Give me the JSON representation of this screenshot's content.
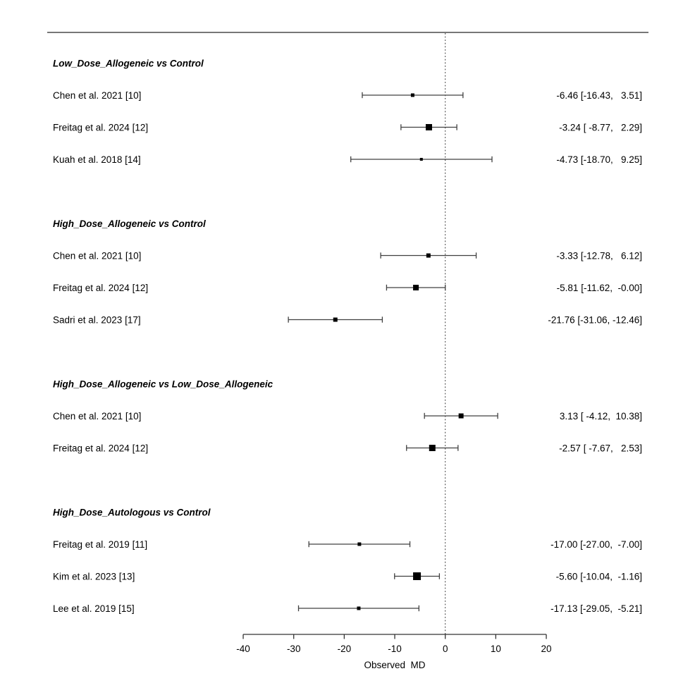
{
  "chart_data": {
    "type": "forest",
    "title": "",
    "xlabel": "Observed  MD",
    "xlim": [
      -40,
      20
    ],
    "x_ticks": [
      -40,
      -30,
      -20,
      -10,
      0,
      10,
      20
    ],
    "reference_line": 0,
    "grid": false,
    "legend": "none",
    "colors": {
      "marker": "#000000",
      "line": "#404040",
      "reference": "#333333",
      "text": "#000000"
    },
    "groups": [
      {
        "label": "Low_Dose_Allogeneic vs Control",
        "studies": [
          {
            "label": "Chen et al. 2021 [10]",
            "estimate": -6.46,
            "ci_lower": -16.43,
            "ci_upper": 3.51,
            "annotation": " -6.46 [-16.43,   3.51]",
            "marker_px": 5
          },
          {
            "label": "Freitag et al. 2024 [12]",
            "estimate": -3.24,
            "ci_lower": -8.77,
            "ci_upper": 2.29,
            "annotation": " -3.24 [ -8.77,   2.29]",
            "marker_px": 9
          },
          {
            "label": "Kuah et al. 2018 [14]",
            "estimate": -4.73,
            "ci_lower": -18.7,
            "ci_upper": 9.25,
            "annotation": " -4.73 [-18.70,   9.25]",
            "marker_px": 4
          }
        ]
      },
      {
        "label": "High_Dose_Allogeneic vs Control",
        "studies": [
          {
            "label": "Chen et al. 2021 [10]",
            "estimate": -3.33,
            "ci_lower": -12.78,
            "ci_upper": 6.12,
            "annotation": " -3.33 [-12.78,   6.12]",
            "marker_px": 6
          },
          {
            "label": "Freitag et al. 2024 [12]",
            "estimate": -5.81,
            "ci_lower": -11.62,
            "ci_upper": -0.0,
            "annotation": " -5.81 [-11.62,  -0.00]",
            "marker_px": 8
          },
          {
            "label": "Sadri et al. 2023 [17]",
            "estimate": -21.76,
            "ci_lower": -31.06,
            "ci_upper": -12.46,
            "annotation": "-21.76 [-31.06, -12.46]",
            "marker_px": 6
          }
        ]
      },
      {
        "label": "High_Dose_Allogeneic vs Low_Dose_Allogeneic",
        "studies": [
          {
            "label": "Chen et al. 2021 [10]",
            "estimate": 3.13,
            "ci_lower": -4.12,
            "ci_upper": 10.38,
            "annotation": "  3.13 [ -4.12,  10.38]",
            "marker_px": 7
          },
          {
            "label": "Freitag et al. 2024 [12]",
            "estimate": -2.57,
            "ci_lower": -7.67,
            "ci_upper": 2.53,
            "annotation": " -2.57 [ -7.67,   2.53]",
            "marker_px": 9
          }
        ]
      },
      {
        "label": "High_Dose_Autologous vs Control",
        "studies": [
          {
            "label": "Freitag et al. 2019 [11]",
            "estimate": -17.0,
            "ci_lower": -27.0,
            "ci_upper": -7.0,
            "annotation": "-17.00 [-27.00,  -7.00]",
            "marker_px": 5
          },
          {
            "label": "Kim et al. 2023 [13]",
            "estimate": -5.6,
            "ci_lower": -10.04,
            "ci_upper": -1.16,
            "annotation": " -5.60 [-10.04,  -1.16]",
            "marker_px": 11
          },
          {
            "label": "Lee et al. 2019 [15]",
            "estimate": -17.13,
            "ci_lower": -29.05,
            "ci_upper": -5.21,
            "annotation": "-17.13 [-29.05,  -5.21]",
            "marker_px": 5
          }
        ]
      }
    ]
  }
}
